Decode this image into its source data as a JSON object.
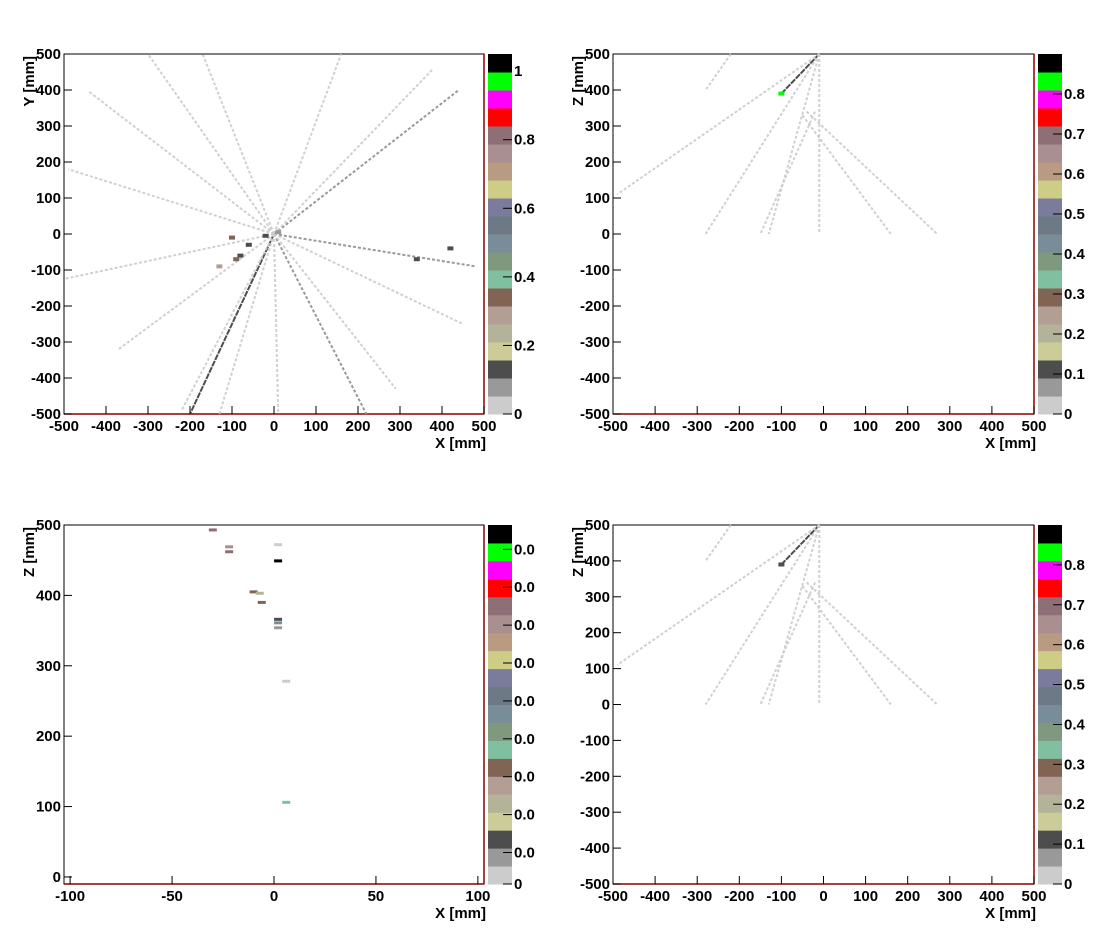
{
  "palette": [
    "#cccccc",
    "#999999",
    "#4d4d4d",
    "#cccc99",
    "#b3b399",
    "#b39e94",
    "#826455",
    "#80c0a0",
    "#7f997f",
    "#798d99",
    "#6d7a86",
    "#7b7b9c",
    "#cdcd85",
    "#b89b80",
    "#a98f8f",
    "#8f6f76",
    "#ff0000",
    "#ff00ff",
    "#00ff00",
    "#000000"
  ],
  "chart_data": [
    {
      "id": "xy",
      "type": "heatmap",
      "xlabel": "X [mm]",
      "ylabel": "Y [mm]",
      "xlim": [
        -500,
        500
      ],
      "ylim": [
        -500,
        500
      ],
      "xticks": [
        "-500",
        "-400",
        "-300",
        "-200",
        "-100",
        "0",
        "100",
        "200",
        "300",
        "400",
        "500"
      ],
      "yticks": [
        "-500",
        "-400",
        "-300",
        "-200",
        "-100",
        "0",
        "100",
        "200",
        "300",
        "400",
        "500"
      ],
      "colorbar": {
        "range": [
          0,
          1.05
        ],
        "ticks": [
          "0",
          "0.2",
          "0.4",
          "0.6",
          "0.8",
          "1"
        ]
      },
      "tracks": [
        {
          "from": [
            0,
            0
          ],
          "to": [
            -200,
            -500
          ],
          "level": 2
        },
        {
          "from": [
            0,
            0
          ],
          "to": [
            -500,
            -125
          ],
          "level": 0
        },
        {
          "from": [
            0,
            0
          ],
          "to": [
            -440,
            395
          ],
          "level": 0
        },
        {
          "from": [
            0,
            0
          ],
          "to": [
            -300,
            500
          ],
          "level": 0
        },
        {
          "from": [
            0,
            0
          ],
          "to": [
            -170,
            500
          ],
          "level": 0
        },
        {
          "from": [
            0,
            0
          ],
          "to": [
            160,
            500
          ],
          "level": 0
        },
        {
          "from": [
            0,
            0
          ],
          "to": [
            440,
            400
          ],
          "level": 1
        },
        {
          "from": [
            0,
            0
          ],
          "to": [
            380,
            460
          ],
          "level": 0
        },
        {
          "from": [
            0,
            0
          ],
          "to": [
            480,
            -90
          ],
          "level": 1
        },
        {
          "from": [
            0,
            0
          ],
          "to": [
            450,
            -250
          ],
          "level": 0
        },
        {
          "from": [
            0,
            0
          ],
          "to": [
            220,
            -500
          ],
          "level": 1
        },
        {
          "from": [
            0,
            0
          ],
          "to": [
            -370,
            -320
          ],
          "level": 0
        },
        {
          "from": [
            0,
            0
          ],
          "to": [
            -130,
            -500
          ],
          "level": 0
        },
        {
          "from": [
            0,
            0
          ],
          "to": [
            -490,
            180
          ],
          "level": 0
        },
        {
          "from": [
            0,
            0
          ],
          "to": [
            290,
            -430
          ],
          "level": 0
        },
        {
          "from": [
            0,
            0
          ],
          "to": [
            10,
            -500
          ],
          "level": 0
        },
        {
          "from": [
            0,
            0
          ],
          "to": [
            -220,
            -490
          ],
          "level": 0
        }
      ],
      "blobs": [
        {
          "x": -60,
          "y": -30,
          "level": 2
        },
        {
          "x": -80,
          "y": -60,
          "level": 2
        },
        {
          "x": -100,
          "y": -10,
          "level": 6
        },
        {
          "x": -20,
          "y": -5,
          "level": 2
        },
        {
          "x": 10,
          "y": 5,
          "level": 1
        },
        {
          "x": -130,
          "y": -90,
          "level": 5
        },
        {
          "x": 340,
          "y": -70,
          "level": 2
        },
        {
          "x": 420,
          "y": -40,
          "level": 2
        },
        {
          "x": -90,
          "y": -70,
          "level": 6
        }
      ]
    },
    {
      "id": "xz1",
      "type": "heatmap",
      "xlabel": "X [mm]",
      "ylabel": "Z [mm]",
      "xlim": [
        -500,
        500
      ],
      "ylim": [
        -500,
        500
      ],
      "xticks": [
        "-500",
        "-400",
        "-300",
        "-200",
        "-100",
        "0",
        "100",
        "200",
        "300",
        "400",
        "500"
      ],
      "yticks": [
        "-500",
        "-400",
        "-300",
        "-200",
        "-100",
        "0",
        "100",
        "200",
        "300",
        "400",
        "500"
      ],
      "colorbar": {
        "range": [
          0,
          0.9
        ],
        "ticks": [
          "0",
          "0.1",
          "0.2",
          "0.3",
          "0.4",
          "0.5",
          "0.6",
          "0.7",
          "0.8"
        ]
      },
      "tracks": [
        {
          "from": [
            -10,
            500
          ],
          "to": [
            -100,
            390
          ],
          "level": 2
        },
        {
          "from": [
            -10,
            500
          ],
          "to": [
            -490,
            110
          ],
          "level": 0
        },
        {
          "from": [
            -10,
            500
          ],
          "to": [
            -130,
            0
          ],
          "level": 0
        },
        {
          "from": [
            -10,
            500
          ],
          "to": [
            -10,
            0
          ],
          "level": 0
        },
        {
          "from": [
            -10,
            500
          ],
          "to": [
            -280,
            0
          ],
          "level": 0
        },
        {
          "from": [
            -20,
            340
          ],
          "to": [
            -150,
            0
          ],
          "level": 0
        },
        {
          "from": [
            -50,
            330
          ],
          "to": [
            160,
            0
          ],
          "level": 0
        },
        {
          "from": [
            -40,
            340
          ],
          "to": [
            270,
            0
          ],
          "level": 0
        },
        {
          "from": [
            -220,
            500
          ],
          "to": [
            -280,
            400
          ],
          "level": 0
        }
      ],
      "blobs": [
        {
          "x": -100,
          "y": 390,
          "level": 18
        }
      ]
    },
    {
      "id": "xz-zoom",
      "type": "heatmap",
      "xlabel": "X [mm]",
      "ylabel": "Z [mm]",
      "xlim": [
        -103,
        103
      ],
      "ylim": [
        -10,
        500
      ],
      "xticks": [
        "-100",
        "-50",
        "0",
        "50",
        "100"
      ],
      "ytick_values": [
        0,
        100,
        200,
        300,
        400,
        500
      ],
      "yticks": [
        "0",
        "100",
        "200",
        "300",
        "400",
        "500"
      ],
      "colorbar": {
        "range": [
          0,
          1
        ],
        "ticks": [
          "0",
          "0.0",
          "0.0",
          "0.0",
          "0.0",
          "0.0",
          "0.0",
          "0.0",
          "0.0",
          "0.0"
        ]
      },
      "bins": [
        {
          "x": -30,
          "z": 493,
          "level": 15
        },
        {
          "x": -22,
          "z": 469,
          "level": 14
        },
        {
          "x": -22,
          "z": 462,
          "level": 15
        },
        {
          "x": 2,
          "z": 472,
          "level": 0
        },
        {
          "x": 2,
          "z": 449,
          "level": 19
        },
        {
          "x": -10,
          "z": 405,
          "level": 6
        },
        {
          "x": -7,
          "z": 403,
          "level": 4
        },
        {
          "x": -6,
          "z": 390,
          "level": 6
        },
        {
          "x": 2,
          "z": 366,
          "level": 2
        },
        {
          "x": 2,
          "z": 361,
          "level": 9
        },
        {
          "x": 2,
          "z": 354,
          "level": 1
        },
        {
          "x": 6,
          "z": 278,
          "level": 0
        },
        {
          "x": 6,
          "z": 106,
          "level": 7
        }
      ]
    },
    {
      "id": "xz2",
      "type": "heatmap",
      "xlabel": "X [mm]",
      "ylabel": "Z [mm]",
      "xlim": [
        -500,
        500
      ],
      "ylim": [
        -500,
        500
      ],
      "xticks": [
        "-500",
        "-400",
        "-300",
        "-200",
        "-100",
        "0",
        "100",
        "200",
        "300",
        "400",
        "500"
      ],
      "yticks": [
        "-500",
        "-400",
        "-300",
        "-200",
        "-100",
        "0",
        "100",
        "200",
        "300",
        "400",
        "500"
      ],
      "colorbar": {
        "range": [
          0,
          0.9
        ],
        "ticks": [
          "0",
          "0.1",
          "0.2",
          "0.3",
          "0.4",
          "0.5",
          "0.6",
          "0.7",
          "0.8"
        ]
      },
      "tracks": [
        {
          "from": [
            -10,
            500
          ],
          "to": [
            -100,
            390
          ],
          "level": 2
        },
        {
          "from": [
            -10,
            500
          ],
          "to": [
            -490,
            110
          ],
          "level": 0
        },
        {
          "from": [
            -10,
            500
          ],
          "to": [
            -130,
            0
          ],
          "level": 0
        },
        {
          "from": [
            -10,
            500
          ],
          "to": [
            -10,
            0
          ],
          "level": 0
        },
        {
          "from": [
            -10,
            500
          ],
          "to": [
            -280,
            0
          ],
          "level": 0
        },
        {
          "from": [
            -20,
            340
          ],
          "to": [
            -150,
            0
          ],
          "level": 0
        },
        {
          "from": [
            -50,
            330
          ],
          "to": [
            160,
            0
          ],
          "level": 0
        },
        {
          "from": [
            -40,
            340
          ],
          "to": [
            270,
            0
          ],
          "level": 0
        },
        {
          "from": [
            -220,
            500
          ],
          "to": [
            -280,
            400
          ],
          "level": 0
        }
      ],
      "blobs": [
        {
          "x": -100,
          "y": 390,
          "level": 2
        }
      ]
    }
  ]
}
